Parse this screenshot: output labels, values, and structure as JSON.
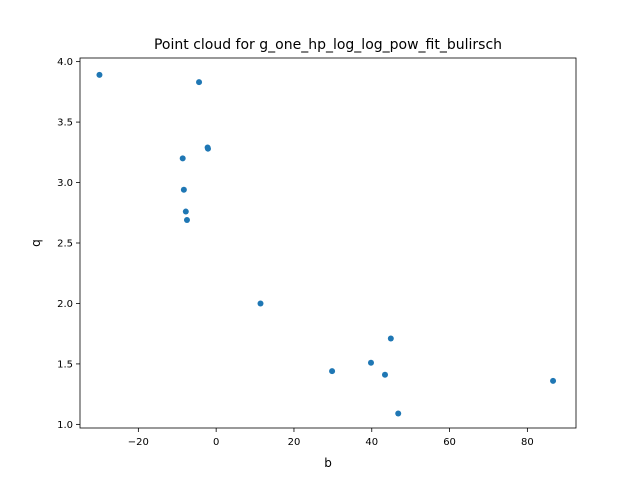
{
  "chart_data": {
    "type": "scatter",
    "title": "Point cloud for g_one_hp_log_log_pow_fit_bulirsch",
    "xlabel": "b",
    "ylabel": "q",
    "xlim": [
      -35,
      92.5
    ],
    "ylim": [
      0.97,
      4.03
    ],
    "xticks": [
      -20,
      0,
      20,
      40,
      60,
      80
    ],
    "yticks": [
      1.0,
      1.5,
      2.0,
      2.5,
      3.0,
      3.5,
      4.0
    ],
    "xtick_labels": [
      "−20",
      "0",
      "20",
      "40",
      "60",
      "80"
    ],
    "ytick_labels": [
      "1.0",
      "1.5",
      "2.0",
      "2.5",
      "3.0",
      "3.5",
      "4.0"
    ],
    "grid": false,
    "marker_color": "#1f77b4",
    "points": [
      {
        "x": -30.0,
        "y": 3.89
      },
      {
        "x": -4.4,
        "y": 3.83
      },
      {
        "x": -2.2,
        "y": 3.29
      },
      {
        "x": -2.1,
        "y": 3.28
      },
      {
        "x": -8.6,
        "y": 3.2
      },
      {
        "x": -8.3,
        "y": 2.94
      },
      {
        "x": -7.8,
        "y": 2.76
      },
      {
        "x": -7.5,
        "y": 2.69
      },
      {
        "x": 11.4,
        "y": 2.0
      },
      {
        "x": 29.8,
        "y": 1.44
      },
      {
        "x": 39.8,
        "y": 1.51
      },
      {
        "x": 43.4,
        "y": 1.41
      },
      {
        "x": 44.9,
        "y": 1.71
      },
      {
        "x": 46.8,
        "y": 1.09
      },
      {
        "x": 86.6,
        "y": 1.36
      }
    ]
  }
}
